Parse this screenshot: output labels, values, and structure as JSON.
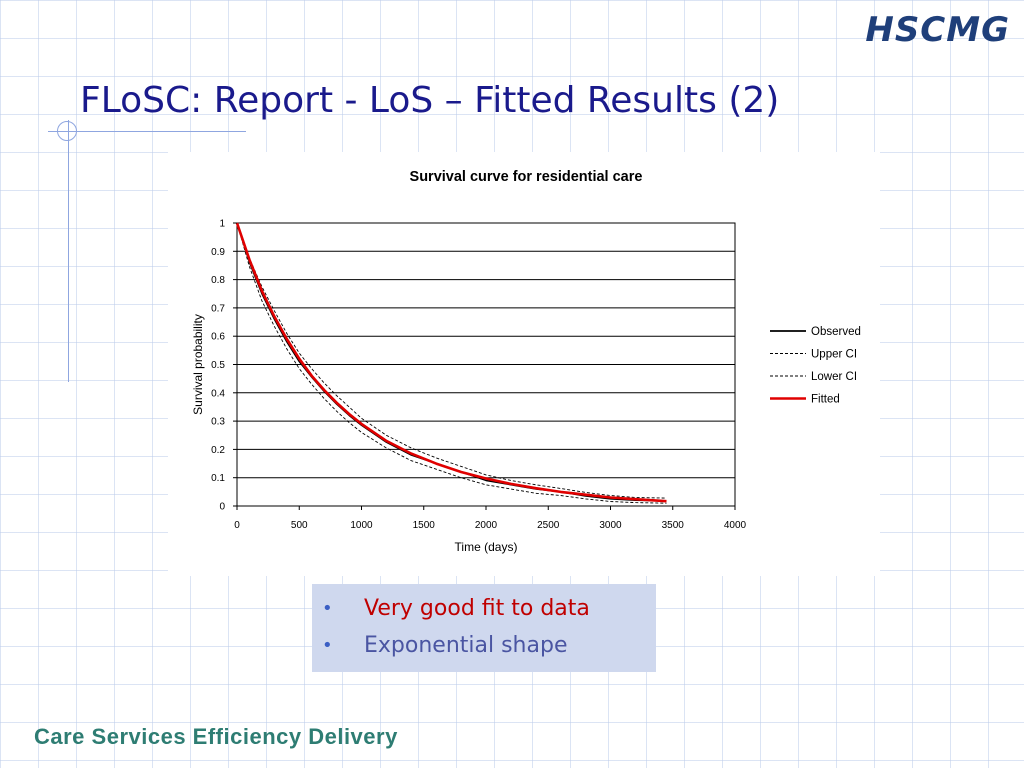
{
  "logo": {
    "text": "HSCMG"
  },
  "slide": {
    "title": "FLoSC: Report - LoS – Fitted Results (2)",
    "bullets": [
      {
        "text": "Very good fit to data",
        "color": "#c00000"
      },
      {
        "text": "Exponential shape",
        "color": "#4a55a2"
      }
    ],
    "bullet_symbol": "•"
  },
  "footer": {
    "text": "Care Services Efficiency Delivery"
  },
  "chart_data": {
    "type": "line",
    "title": "Survival curve for residential care",
    "xlabel": "Time (days)",
    "ylabel": "Survival probability",
    "xlim": [
      0,
      4000
    ],
    "ylim": [
      0,
      1
    ],
    "xticks": [
      0,
      500,
      1000,
      1500,
      2000,
      2500,
      3000,
      3500,
      4000
    ],
    "yticks": [
      0,
      0.1,
      0.2,
      0.3,
      0.4,
      0.5,
      0.6,
      0.7,
      0.8,
      0.9,
      1
    ],
    "grid": "horizontal",
    "legend_position": "right",
    "series": [
      {
        "name": "Observed",
        "color": "#000000",
        "style": "solid",
        "x": [
          0,
          100,
          200,
          300,
          400,
          500,
          600,
          700,
          800,
          900,
          1000,
          1200,
          1400,
          1600,
          1800,
          2000,
          2200,
          2400,
          2600,
          2800,
          3000,
          3200,
          3450
        ],
        "y": [
          1,
          0.86,
          0.75,
          0.66,
          0.58,
          0.51,
          0.455,
          0.405,
          0.36,
          0.32,
          0.285,
          0.225,
          0.18,
          0.15,
          0.12,
          0.09,
          0.075,
          0.06,
          0.05,
          0.035,
          0.025,
          0.02,
          0.018
        ]
      },
      {
        "name": "Upper CI",
        "color": "#000000",
        "style": "dashed",
        "x": [
          0,
          100,
          200,
          300,
          400,
          500,
          600,
          700,
          800,
          900,
          1000,
          1200,
          1400,
          1600,
          1800,
          2000,
          2200,
          2400,
          2600,
          2800,
          3000,
          3200,
          3450
        ],
        "y": [
          1,
          0.875,
          0.775,
          0.69,
          0.61,
          0.54,
          0.485,
          0.435,
          0.39,
          0.35,
          0.31,
          0.25,
          0.205,
          0.17,
          0.14,
          0.11,
          0.09,
          0.075,
          0.062,
          0.048,
          0.037,
          0.03,
          0.028
        ]
      },
      {
        "name": "Lower CI",
        "color": "#000000",
        "style": "dashed",
        "x": [
          0,
          100,
          200,
          300,
          400,
          500,
          600,
          700,
          800,
          900,
          1000,
          1200,
          1400,
          1600,
          1800,
          2000,
          2200,
          2400,
          2600,
          2800,
          3000,
          3200,
          3450
        ],
        "y": [
          1,
          0.845,
          0.725,
          0.635,
          0.555,
          0.485,
          0.43,
          0.38,
          0.335,
          0.295,
          0.26,
          0.205,
          0.16,
          0.13,
          0.1,
          0.075,
          0.06,
          0.045,
          0.037,
          0.025,
          0.016,
          0.012,
          0.01
        ]
      },
      {
        "name": "Fitted",
        "color": "#e00000",
        "style": "solid",
        "x": [
          0,
          100,
          200,
          300,
          400,
          500,
          600,
          700,
          800,
          900,
          1000,
          1200,
          1400,
          1600,
          1800,
          2000,
          2200,
          2400,
          2600,
          2800,
          3000,
          3200,
          3450
        ],
        "y": [
          1,
          0.87,
          0.76,
          0.67,
          0.59,
          0.52,
          0.46,
          0.41,
          0.365,
          0.325,
          0.29,
          0.23,
          0.185,
          0.15,
          0.12,
          0.097,
          0.078,
          0.063,
          0.05,
          0.04,
          0.03,
          0.024,
          0.017
        ]
      }
    ]
  }
}
